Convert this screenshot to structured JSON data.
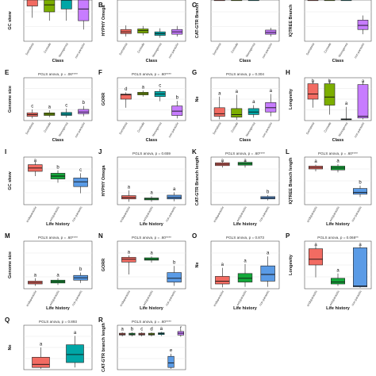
{
  "colors": {
    "Somatotia": "#f26b62",
    "Cestoda": "#7cae00",
    "Monogenea": "#00a6a6",
    "non-parasitic": "#c77cff",
    "endoparasitic": "#f26b62",
    "ectoparasitic": "#14a83a",
    "non-parasitic-lh": "#5a9be6"
  },
  "chart_data": [
    {
      "id": "A",
      "type": "box",
      "letter": "",
      "ylabel": "GC skew",
      "xlabel": "Class",
      "annotation": "",
      "categories": [
        "Somatotia",
        "Cestoda",
        "Monogenea",
        "non-parasitic"
      ],
      "ylim": [
        0,
        1
      ],
      "boxes": [
        {
          "q1": 0.6,
          "med": 0.78,
          "q3": 0.92,
          "lo": 0.4,
          "hi": 1.0,
          "sig": "",
          "col": "Somatotia"
        },
        {
          "q1": 0.5,
          "med": 0.62,
          "q3": 0.75,
          "lo": 0.35,
          "hi": 0.9,
          "sig": "",
          "col": "Cestoda"
        },
        {
          "q1": 0.55,
          "med": 0.7,
          "q3": 0.85,
          "lo": 0.35,
          "hi": 0.95,
          "sig": "",
          "col": "Monogenea"
        },
        {
          "q1": 0.35,
          "med": 0.55,
          "q3": 0.72,
          "lo": 0.2,
          "hi": 0.9,
          "sig": "",
          "col": "non-parasitic"
        }
      ]
    },
    {
      "id": "B",
      "type": "box",
      "letter": "B",
      "ylabel": "HYPHY Omega",
      "xlabel": "Class",
      "annotation": "",
      "categories": [
        "Somatotia",
        "Cestoda",
        "Monogenea",
        "non-parasitic"
      ],
      "ylim": [
        0,
        1
      ],
      "boxes": [
        {
          "q1": 0.13,
          "med": 0.16,
          "q3": 0.2,
          "lo": 0.08,
          "hi": 0.27,
          "sig": "",
          "col": "Somatotia"
        },
        {
          "q1": 0.14,
          "med": 0.18,
          "q3": 0.21,
          "lo": 0.1,
          "hi": 0.26,
          "sig": "",
          "col": "Cestoda"
        },
        {
          "q1": 0.1,
          "med": 0.13,
          "q3": 0.16,
          "lo": 0.06,
          "hi": 0.22,
          "sig": "",
          "col": "Monogenea"
        },
        {
          "q1": 0.12,
          "med": 0.16,
          "q3": 0.2,
          "lo": 0.08,
          "hi": 0.26,
          "sig": "",
          "col": "non-parasitic"
        }
      ]
    },
    {
      "id": "C",
      "type": "box",
      "letter": "C",
      "ylabel": "CAT-GTR Branch",
      "xlabel": "Class",
      "annotation": "",
      "categories": [
        "Somatotia",
        "Cestoda",
        "Monogenea",
        "non-parasitic"
      ],
      "ylim": [
        0,
        1
      ],
      "boxes": [
        {
          "q1": 0.88,
          "med": 0.92,
          "q3": 0.96,
          "lo": 0.82,
          "hi": 1.0,
          "sig": "",
          "col": "Somatotia"
        },
        {
          "q1": 0.86,
          "med": 0.9,
          "q3": 0.94,
          "lo": 0.8,
          "hi": 0.98,
          "sig": "",
          "col": "Cestoda"
        },
        {
          "q1": 0.9,
          "med": 0.93,
          "q3": 0.97,
          "lo": 0.84,
          "hi": 1.0,
          "sig": "",
          "col": "Monogenea"
        },
        {
          "q1": 0.12,
          "med": 0.15,
          "q3": 0.19,
          "lo": 0.08,
          "hi": 0.23,
          "sig": "",
          "col": "non-parasitic"
        }
      ]
    },
    {
      "id": "D",
      "type": "box",
      "letter": "",
      "ylabel": "IQTREE Branch",
      "xlabel": "Class",
      "annotation": "",
      "categories": [
        "Somatotia",
        "Cestoda",
        "Monogenea",
        "non-parasitic"
      ],
      "ylim": [
        0,
        1
      ],
      "boxes": [
        {
          "q1": 0.84,
          "med": 0.88,
          "q3": 0.92,
          "lo": 0.78,
          "hi": 0.97,
          "sig": "",
          "col": "Somatotia"
        },
        {
          "q1": 0.85,
          "med": 0.87,
          "q3": 0.9,
          "lo": 0.8,
          "hi": 0.95,
          "sig": "",
          "col": "Cestoda"
        },
        {
          "q1": 0.85,
          "med": 0.9,
          "q3": 0.94,
          "lo": 0.76,
          "hi": 0.99,
          "sig": "",
          "col": "Monogenea"
        },
        {
          "q1": 0.2,
          "med": 0.27,
          "q3": 0.36,
          "lo": 0.12,
          "hi": 0.44,
          "sig": "",
          "col": "non-parasitic"
        }
      ]
    },
    {
      "id": "E",
      "type": "box",
      "letter": "E",
      "ylabel": "Genome size",
      "xlabel": "Class",
      "annotation": "PGLS anova, p = .06****",
      "categories": [
        "Somatotia",
        "Cestoda",
        "Monogenea",
        "non-parasitic"
      ],
      "ylim": [
        0,
        1
      ],
      "boxes": [
        {
          "q1": 0.1,
          "med": 0.14,
          "q3": 0.18,
          "lo": 0.05,
          "hi": 0.26,
          "sig": "c",
          "col": "Somatotia"
        },
        {
          "q1": 0.12,
          "med": 0.15,
          "q3": 0.18,
          "lo": 0.08,
          "hi": 0.24,
          "sig": "a",
          "col": "Cestoda"
        },
        {
          "q1": 0.12,
          "med": 0.15,
          "q3": 0.19,
          "lo": 0.07,
          "hi": 0.28,
          "sig": "c",
          "col": "Monogenea"
        },
        {
          "q1": 0.16,
          "med": 0.2,
          "q3": 0.26,
          "lo": 0.1,
          "hi": 0.34,
          "sig": "b",
          "col": "non-parasitic"
        }
      ]
    },
    {
      "id": "F",
      "type": "box",
      "letter": "F",
      "ylabel": "GORR",
      "xlabel": "Class",
      "annotation": "PGLS anova, p = .60****",
      "categories": [
        "Somatotia",
        "Cestoda",
        "Monogenea",
        "non-parasitic"
      ],
      "ylim": [
        0,
        1
      ],
      "boxes": [
        {
          "q1": 0.5,
          "med": 0.6,
          "q3": 0.62,
          "lo": 0.3,
          "hi": 0.66,
          "sig": "d",
          "col": "Somatotia"
        },
        {
          "q1": 0.6,
          "med": 0.63,
          "q3": 0.66,
          "lo": 0.56,
          "hi": 0.7,
          "sig": "a",
          "col": "Cestoda"
        },
        {
          "q1": 0.56,
          "med": 0.62,
          "q3": 0.68,
          "lo": 0.45,
          "hi": 0.74,
          "sig": "c",
          "col": "Monogenea"
        },
        {
          "q1": 0.12,
          "med": 0.22,
          "q3": 0.34,
          "lo": 0.05,
          "hi": 0.46,
          "sig": "b",
          "col": "non-parasitic"
        }
      ]
    },
    {
      "id": "G",
      "type": "box",
      "letter": "G",
      "ylabel": "Ne",
      "xlabel": "Class",
      "annotation": "PGLS anova, p = 0.304",
      "categories": [
        "Somatotia",
        "Cestoda",
        "Monogenea",
        "non-parasitic"
      ],
      "ylim": [
        0,
        1
      ],
      "boxes": [
        {
          "q1": 0.1,
          "med": 0.16,
          "q3": 0.3,
          "lo": 0.03,
          "hi": 0.56,
          "sig": "a",
          "col": "Somatotia"
        },
        {
          "q1": 0.08,
          "med": 0.14,
          "q3": 0.28,
          "lo": 0.02,
          "hi": 0.6,
          "sig": "a",
          "col": "Cestoda"
        },
        {
          "q1": 0.14,
          "med": 0.2,
          "q3": 0.28,
          "lo": 0.07,
          "hi": 0.36,
          "sig": "a",
          "col": "Monogenea"
        },
        {
          "q1": 0.2,
          "med": 0.3,
          "q3": 0.42,
          "lo": 0.1,
          "hi": 0.62,
          "sig": "a",
          "col": "non-parasitic"
        }
      ]
    },
    {
      "id": "H",
      "type": "box",
      "letter": "H",
      "ylabel": "Longevity",
      "xlabel": "Class",
      "annotation": "",
      "categories": [
        "Somatotia",
        "Cestoda",
        "Monogenea",
        "non-parasitic"
      ],
      "ylim": [
        0,
        1
      ],
      "boxes": [
        {
          "q1": 0.5,
          "med": 0.62,
          "q3": 0.86,
          "lo": 0.3,
          "hi": 0.92,
          "sig": "b",
          "col": "Somatotia"
        },
        {
          "q1": 0.36,
          "med": 0.55,
          "q3": 0.86,
          "lo": 0.14,
          "hi": 0.94,
          "sig": "b",
          "col": "Cestoda"
        },
        {
          "q1": 0.02,
          "med": 0.03,
          "q3": 0.04,
          "lo": 0.01,
          "hi": 0.32,
          "sig": "a",
          "col": "Monogenea"
        },
        {
          "q1": 0.06,
          "med": 0.1,
          "q3": 0.84,
          "lo": 0.03,
          "hi": 0.9,
          "sig": "a",
          "col": "non-parasitic"
        }
      ]
    },
    {
      "id": "I",
      "type": "box",
      "letter": "I",
      "ylabel": "GC skew",
      "xlabel": "Life history",
      "annotation": "",
      "categories": [
        "endoparasitic",
        "ectoparasitic",
        "non-parasitic"
      ],
      "ylim": [
        0,
        1
      ],
      "boxes": [
        {
          "q1": 0.7,
          "med": 0.77,
          "q3": 0.84,
          "lo": 0.6,
          "hi": 0.9,
          "sig": "a",
          "col": "endoparasitic"
        },
        {
          "q1": 0.54,
          "med": 0.6,
          "q3": 0.66,
          "lo": 0.46,
          "hi": 0.72,
          "sig": "b",
          "col": "ectoparasitic"
        },
        {
          "q1": 0.38,
          "med": 0.48,
          "q3": 0.56,
          "lo": 0.24,
          "hi": 0.66,
          "sig": "c",
          "col": "non-parasitic-lh"
        }
      ]
    },
    {
      "id": "J",
      "type": "box",
      "letter": "J",
      "ylabel": "HYPHY Omega",
      "xlabel": "Life history",
      "annotation": "PGLS anova, p = 0.659",
      "categories": [
        "endoparasitic",
        "ectoparasitic",
        "non-parasitic"
      ],
      "ylim": [
        0,
        1
      ],
      "boxes": [
        {
          "q1": 0.12,
          "med": 0.15,
          "q3": 0.19,
          "lo": 0.06,
          "hi": 0.3,
          "sig": "a",
          "col": "endoparasitic"
        },
        {
          "q1": 0.1,
          "med": 0.12,
          "q3": 0.14,
          "lo": 0.06,
          "hi": 0.18,
          "sig": "a",
          "col": "ectoparasitic"
        },
        {
          "q1": 0.12,
          "med": 0.15,
          "q3": 0.2,
          "lo": 0.07,
          "hi": 0.26,
          "sig": "a",
          "col": "non-parasitic-lh"
        }
      ]
    },
    {
      "id": "K",
      "type": "box",
      "letter": "K",
      "ylabel": "CAT-GTR Branch length",
      "xlabel": "Life history",
      "annotation": "PGLS anova, p = .60****",
      "categories": [
        "endoparasitic",
        "ectoparasitic",
        "non-parasitic"
      ],
      "ylim": [
        0,
        1
      ],
      "boxes": [
        {
          "q1": 0.82,
          "med": 0.85,
          "q3": 0.88,
          "lo": 0.78,
          "hi": 0.91,
          "sig": "a",
          "col": "endoparasitic"
        },
        {
          "q1": 0.83,
          "med": 0.86,
          "q3": 0.89,
          "lo": 0.78,
          "hi": 0.92,
          "sig": "a",
          "col": "ectoparasitic"
        },
        {
          "q1": 0.12,
          "med": 0.14,
          "q3": 0.17,
          "lo": 0.09,
          "hi": 0.2,
          "sig": "b",
          "col": "non-parasitic-lh"
        }
      ]
    },
    {
      "id": "L",
      "type": "box",
      "letter": "L",
      "ylabel": "IQTREE Branch length",
      "xlabel": "Life history",
      "annotation": "PGLS anova, p = .60****",
      "categories": [
        "endoparasitic",
        "ectoparasitic",
        "non-parasitic"
      ],
      "ylim": [
        0,
        1
      ],
      "boxes": [
        {
          "q1": 0.75,
          "med": 0.78,
          "q3": 0.81,
          "lo": 0.7,
          "hi": 0.84,
          "sig": "a",
          "col": "endoparasitic"
        },
        {
          "q1": 0.73,
          "med": 0.77,
          "q3": 0.81,
          "lo": 0.68,
          "hi": 0.85,
          "sig": "a",
          "col": "ectoparasitic"
        },
        {
          "q1": 0.22,
          "med": 0.26,
          "q3": 0.34,
          "lo": 0.16,
          "hi": 0.4,
          "sig": "b",
          "col": "non-parasitic-lh"
        }
      ]
    },
    {
      "id": "M",
      "type": "box",
      "letter": "M",
      "ylabel": "Genome size",
      "xlabel": "Life history",
      "annotation": "PGLS anova, p = .60****",
      "categories": [
        "endoparasitic",
        "ectoparasitic",
        "non-parasitic"
      ],
      "ylim": [
        0,
        1
      ],
      "boxes": [
        {
          "q1": 0.1,
          "med": 0.13,
          "q3": 0.16,
          "lo": 0.06,
          "hi": 0.22,
          "sig": "a",
          "col": "endoparasitic"
        },
        {
          "q1": 0.12,
          "med": 0.15,
          "q3": 0.18,
          "lo": 0.08,
          "hi": 0.22,
          "sig": "a",
          "col": "ectoparasitic"
        },
        {
          "q1": 0.18,
          "med": 0.23,
          "q3": 0.28,
          "lo": 0.12,
          "hi": 0.34,
          "sig": "b",
          "col": "non-parasitic-lh"
        }
      ]
    },
    {
      "id": "N",
      "type": "box",
      "letter": "N",
      "ylabel": "GORR",
      "xlabel": "Life history",
      "annotation": "PGLS anova, p = .60****",
      "categories": [
        "endoparasitic",
        "ectoparasitic",
        "non-parasitic"
      ],
      "ylim": [
        0,
        1
      ],
      "boxes": [
        {
          "q1": 0.56,
          "med": 0.62,
          "q3": 0.66,
          "lo": 0.3,
          "hi": 0.7,
          "sig": "a",
          "col": "endoparasitic"
        },
        {
          "q1": 0.6,
          "med": 0.62,
          "q3": 0.65,
          "lo": 0.55,
          "hi": 0.68,
          "sig": "a",
          "col": "ectoparasitic"
        },
        {
          "q1": 0.14,
          "med": 0.22,
          "q3": 0.34,
          "lo": 0.06,
          "hi": 0.48,
          "sig": "b",
          "col": "non-parasitic-lh"
        }
      ]
    },
    {
      "id": "O",
      "type": "box",
      "letter": "O",
      "ylabel": "Ne",
      "xlabel": "Life history",
      "annotation": "PGLS anova, p = 0.873",
      "categories": [
        "endoparasitic",
        "ectoparasitic",
        "non-parasitic"
      ],
      "ylim": [
        0,
        1
      ],
      "boxes": [
        {
          "q1": 0.1,
          "med": 0.16,
          "q3": 0.26,
          "lo": 0.03,
          "hi": 0.44,
          "sig": "a",
          "col": "endoparasitic"
        },
        {
          "q1": 0.14,
          "med": 0.22,
          "q3": 0.32,
          "lo": 0.04,
          "hi": 0.52,
          "sig": "a",
          "col": "ectoparasitic"
        },
        {
          "q1": 0.16,
          "med": 0.3,
          "q3": 0.48,
          "lo": 0.04,
          "hi": 0.68,
          "sig": "a",
          "col": "non-parasitic-lh"
        }
      ]
    },
    {
      "id": "P",
      "type": "box",
      "letter": "P",
      "ylabel": "Longevity",
      "xlabel": "Life history",
      "annotation": "PGLS anova, p = 0.068**",
      "categories": [
        "endoparasitic",
        "ectoparasitic",
        "non-parasitic"
      ],
      "ylim": [
        0,
        1
      ],
      "boxes": [
        {
          "q1": 0.5,
          "med": 0.62,
          "q3": 0.84,
          "lo": 0.24,
          "hi": 0.9,
          "sig": "a",
          "col": "endoparasitic"
        },
        {
          "q1": 0.1,
          "med": 0.14,
          "q3": 0.22,
          "lo": 0.06,
          "hi": 0.32,
          "sig": "a",
          "col": "ectoparasitic"
        },
        {
          "q1": 0.04,
          "med": 0.06,
          "q3": 0.86,
          "lo": 0.02,
          "hi": 0.9,
          "sig": "a",
          "col": "non-parasitic-lh"
        }
      ]
    },
    {
      "id": "Q",
      "type": "box",
      "letter": "Q",
      "ylabel": "Ne",
      "xlabel": "",
      "annotation": "PGLS anova, p = 0.893",
      "categories": [
        "endoparasitic",
        "non-parasitic"
      ],
      "ylim": [
        0,
        1
      ],
      "boxes": [
        {
          "q1": 0.05,
          "med": 0.12,
          "q3": 0.28,
          "lo": 0.02,
          "hi": 0.5,
          "sig": "a",
          "col": "endoparasitic"
        },
        {
          "q1": 0.16,
          "med": 0.34,
          "q3": 0.56,
          "lo": 0.05,
          "hi": 0.76,
          "sig": "a",
          "col": "Monogenea"
        }
      ]
    },
    {
      "id": "R",
      "type": "box",
      "letter": "R",
      "ylabel": "CAT-GTR branch length",
      "xlabel": "",
      "annotation": "PGLS anova, p = .60****",
      "categories": [
        "",
        "",
        "",
        "",
        "",
        "",
        ""
      ],
      "ylim": [
        0,
        1
      ],
      "boxes": [
        {
          "q1": 0.78,
          "med": 0.8,
          "q3": 0.82,
          "lo": 0.75,
          "hi": 0.84,
          "sig": "a",
          "col": "endoparasitic"
        },
        {
          "q1": 0.78,
          "med": 0.8,
          "q3": 0.82,
          "lo": 0.75,
          "hi": 0.84,
          "sig": "b",
          "col": "ectoparasitic"
        },
        {
          "q1": 0.78,
          "med": 0.8,
          "q3": 0.82,
          "lo": 0.75,
          "hi": 0.84,
          "sig": "c",
          "col": "Somatotia"
        },
        {
          "q1": 0.78,
          "med": 0.8,
          "q3": 0.82,
          "lo": 0.75,
          "hi": 0.84,
          "sig": "d",
          "col": "Cestoda"
        },
        {
          "q1": 0.79,
          "med": 0.81,
          "q3": 0.83,
          "lo": 0.76,
          "hi": 0.85,
          "sig": "a",
          "col": "Monogenea"
        },
        {
          "q1": 0.05,
          "med": 0.15,
          "q3": 0.3,
          "lo": 0.02,
          "hi": 0.36,
          "sig": "e",
          "col": "non-parasitic-lh"
        },
        {
          "q1": 0.78,
          "med": 0.82,
          "q3": 0.86,
          "lo": 0.74,
          "hi": 0.9,
          "sig": "f",
          "col": "non-parasitic"
        }
      ]
    }
  ]
}
